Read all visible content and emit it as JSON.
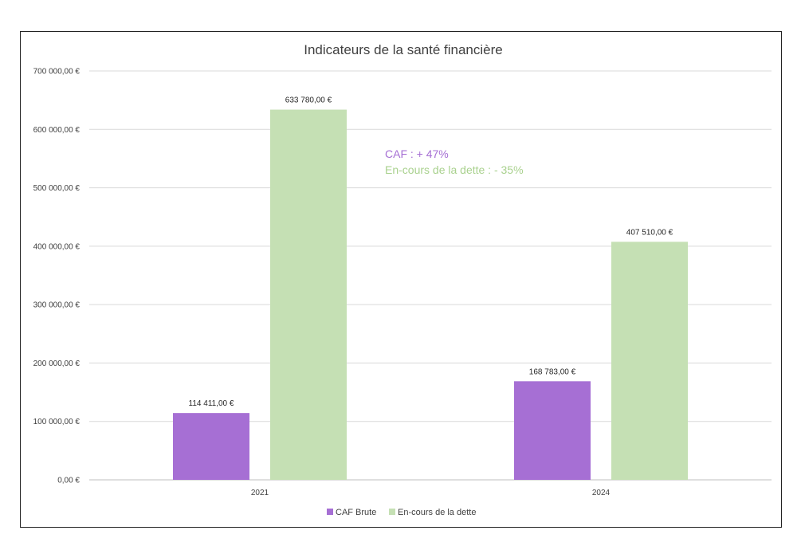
{
  "chart_data": {
    "type": "bar",
    "title": "Indicateurs de la santé financière",
    "categories": [
      "2021",
      "2024"
    ],
    "series": [
      {
        "name": "CAF Brute",
        "color": "#a66fd4",
        "values": [
          114411,
          168783
        ],
        "labels": [
          "114 411,00 €",
          "168 783,00 €"
        ]
      },
      {
        "name": "En-cours de la dette",
        "color": "#c5e0b4",
        "values": [
          633780,
          407510
        ],
        "labels": [
          "633 780,00 €",
          "407 510,00 €"
        ]
      }
    ],
    "ylim": [
      0,
      700000
    ],
    "yticks": [
      0,
      100000,
      200000,
      300000,
      400000,
      500000,
      600000,
      700000
    ],
    "ytick_labels": [
      "0,00 €",
      "100 000,00 €",
      "200 000,00 €",
      "300 000,00 €",
      "400 000,00 €",
      "500 000,00 €",
      "600 000,00 €",
      "700 000,00 €"
    ],
    "grid": true,
    "legend_position": "bottom",
    "annotations": [
      {
        "text": "CAF : + 47%",
        "color": "#a66fd4"
      },
      {
        "text": "En-cours de la dette : - 35%",
        "color": "#a9d18e"
      }
    ]
  }
}
